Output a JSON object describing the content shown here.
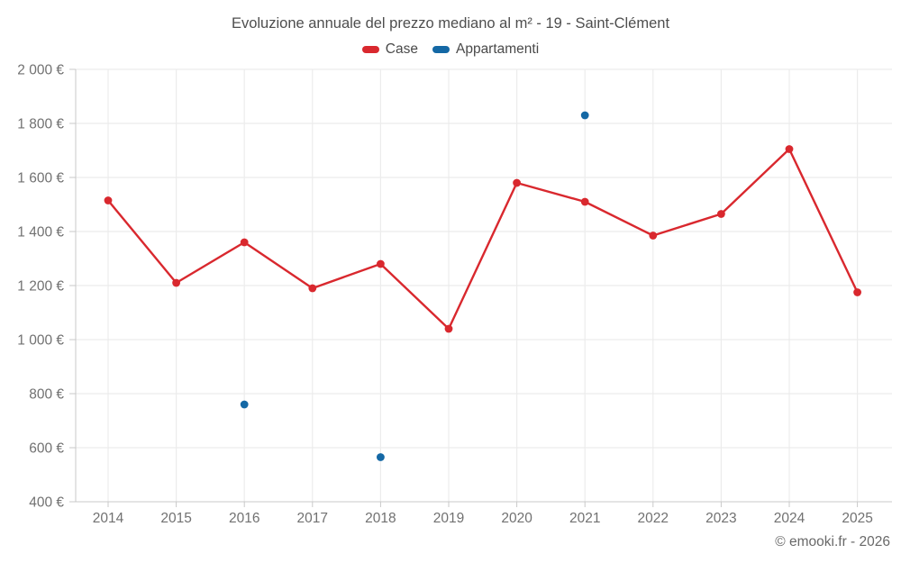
{
  "chart_data": {
    "type": "line",
    "title": "Evoluzione annuale del prezzo mediano al m² - 19 - Saint-Clément",
    "categories": [
      "2014",
      "2015",
      "2016",
      "2017",
      "2018",
      "2019",
      "2020",
      "2021",
      "2022",
      "2023",
      "2024",
      "2025"
    ],
    "series": [
      {
        "name": "Case",
        "type": "line",
        "color": "#d9282e",
        "values": [
          1515,
          1210,
          1360,
          1190,
          1280,
          1040,
          1580,
          1510,
          1385,
          1465,
          1705,
          1175
        ]
      },
      {
        "name": "Appartamenti",
        "type": "scatter",
        "color": "#1468a5",
        "values": [
          null,
          null,
          760,
          null,
          565,
          null,
          null,
          1830,
          null,
          null,
          null,
          null
        ]
      }
    ],
    "ylim": [
      400,
      2000
    ],
    "ytick_step": 200,
    "ytick_suffix": " €",
    "grid": true,
    "legend_position": "top",
    "xlabel": "",
    "ylabel": ""
  },
  "style_colors": {
    "grid": "#ececec",
    "axis": "#c9c9c9",
    "tick_label": "#717171"
  },
  "footer": {
    "credit": "© emooki.fr - 2026"
  }
}
